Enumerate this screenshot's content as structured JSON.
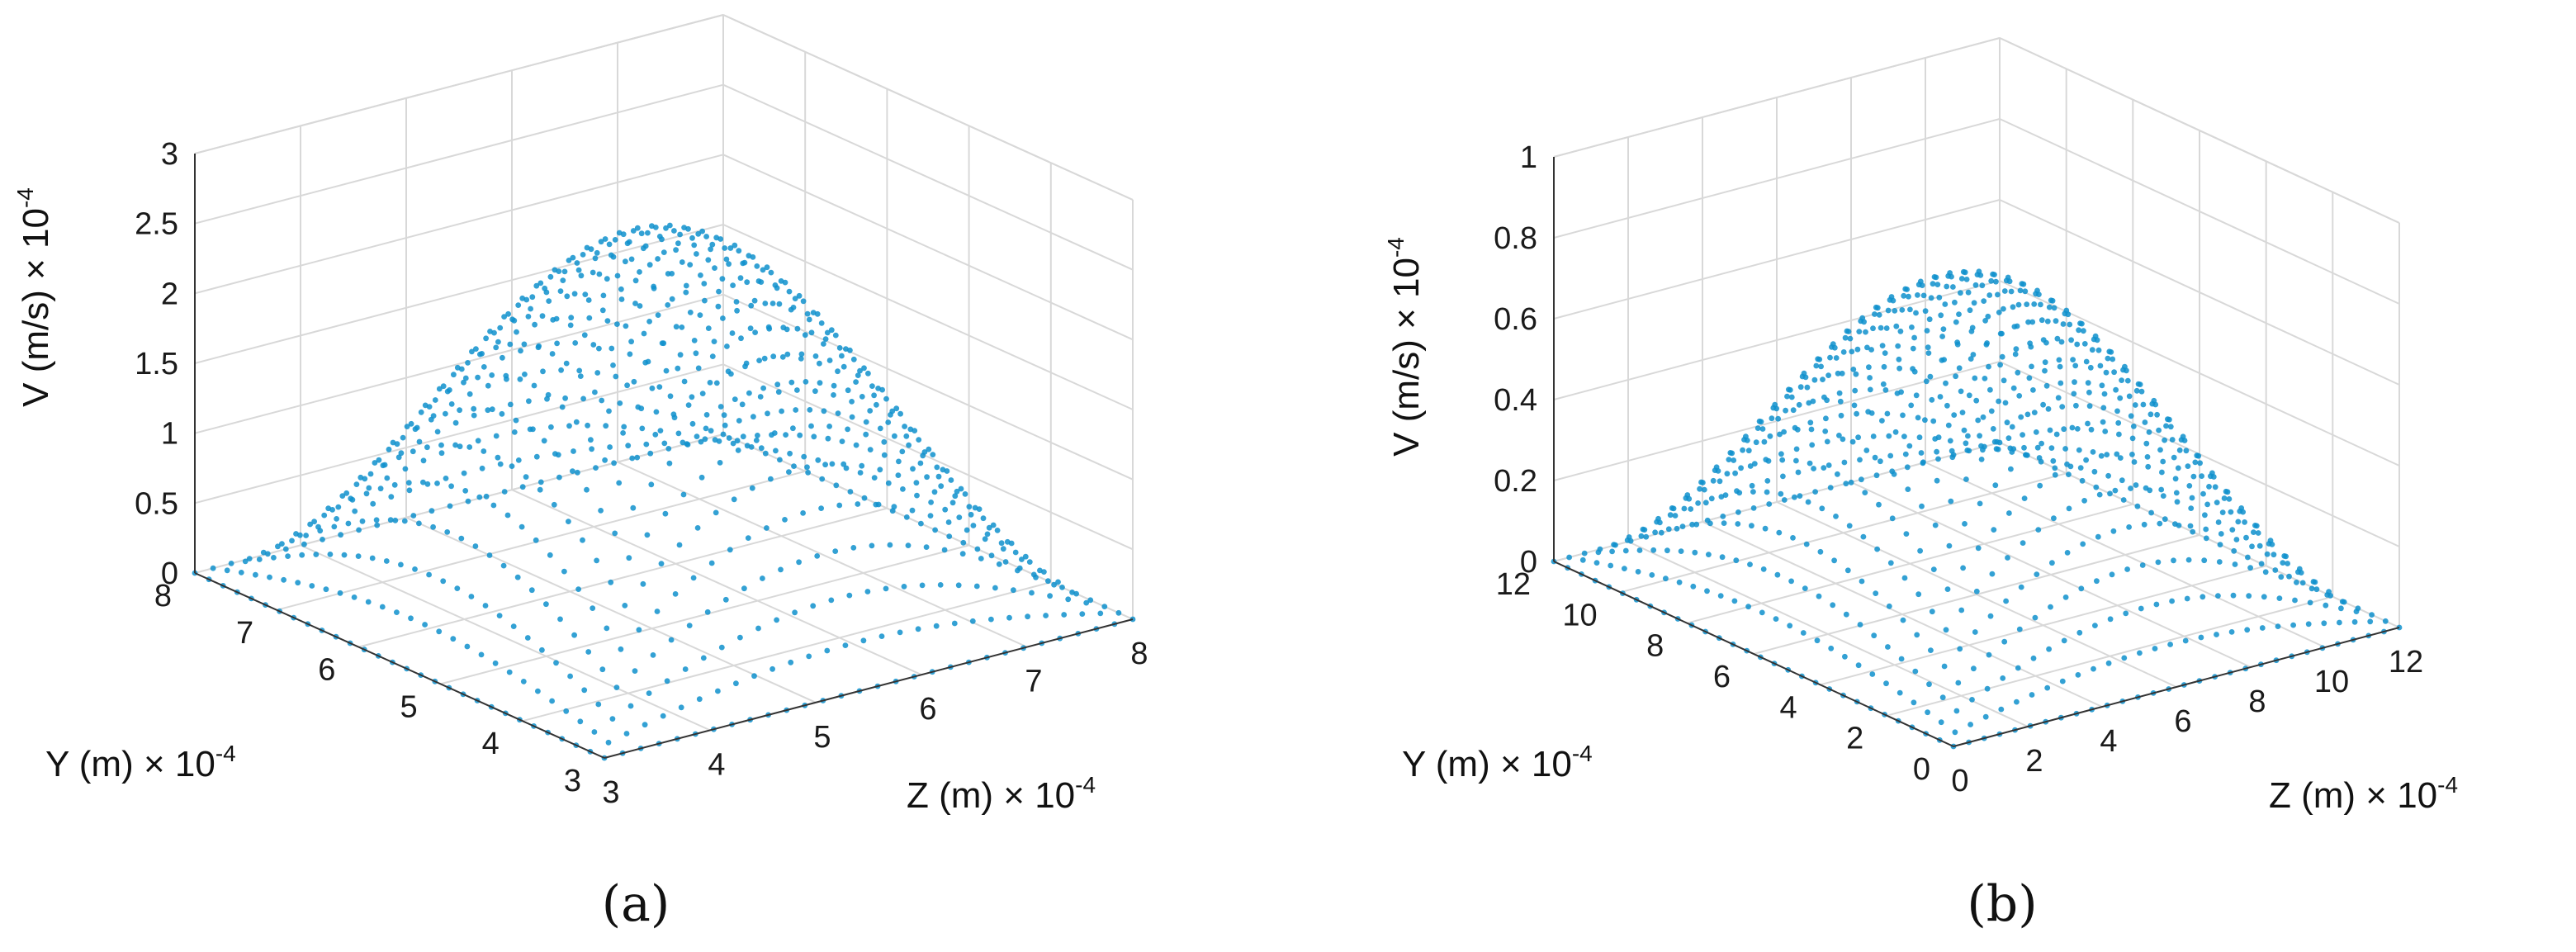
{
  "colors": {
    "marker": "#0f91cc"
  },
  "chart_data": [
    {
      "type": "scatter",
      "panel_label": "(a)",
      "zlabel": "V (m/s) × 10",
      "zlabel_exp": "-4",
      "ylabel": "Y (m) × 10",
      "ylabel_exp": "-4",
      "xlabel": "Z (m) × 10",
      "xlabel_exp": "-4",
      "zlim": [
        0,
        3
      ],
      "ylim": [
        3,
        8
      ],
      "xlim": [
        3,
        8
      ],
      "ztick_labels": [
        "0",
        "0.5",
        "1",
        "1.5",
        "2",
        "2.5",
        "3"
      ],
      "ytick_labels": [
        "3",
        "4",
        "5",
        "6",
        "7",
        "8"
      ],
      "xtick_labels": [
        "3",
        "4",
        "5",
        "6",
        "7",
        "8"
      ],
      "peak_value": 2.6,
      "surface": "V = Vmax · sin(π(Z−Zmin)/(Zmax−Zmin)) · sin(π(Y−Ymin)/(Ymax−Ymin))"
    },
    {
      "type": "scatter",
      "panel_label": "(b)",
      "zlabel": "V (m/s) × 10",
      "zlabel_exp": "-4",
      "ylabel": "Y (m) × 10",
      "ylabel_exp": "-4",
      "xlabel": "Z (m) × 10",
      "xlabel_exp": "-4",
      "zlim": [
        0,
        1
      ],
      "ylim": [
        0,
        12
      ],
      "xlim": [
        0,
        12
      ],
      "ztick_labels": [
        "0",
        "0.2",
        "0.4",
        "0.6",
        "0.8",
        "1"
      ],
      "ytick_labels": [
        "0",
        "2",
        "4",
        "6",
        "8",
        "10",
        "12"
      ],
      "xtick_labels": [
        "0",
        "2",
        "4",
        "6",
        "8",
        "10",
        "12"
      ],
      "peak_value": 0.78,
      "surface": "V = Vmax · sin(π(Z−Zmin)/(Zmax−Zmin)) · sin(π(Y−Ymin)/(Ymax−Ymin))"
    }
  ]
}
